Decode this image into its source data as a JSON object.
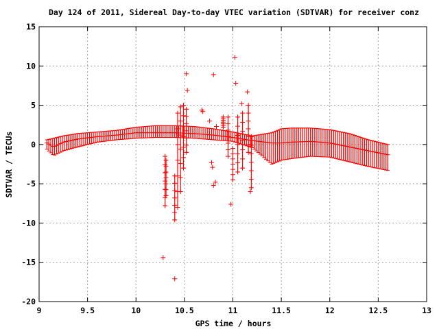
{
  "chart_data": {
    "type": "scatter",
    "title": "Day 124 of 2011, Sidereal Day-to-day VTEC variation (SDTVAR) for receiver conz",
    "xlabel": "GPS time / hours",
    "ylabel": "SDTVAR / TECUs",
    "xlim": [
      9,
      13
    ],
    "ylim": [
      -20,
      15
    ],
    "x_ticks": [
      "9",
      "9.5",
      "10",
      "10.5",
      "11",
      "11.5",
      "12",
      "12.5",
      "13"
    ],
    "y_ticks": [
      "15",
      "10",
      "5",
      "0",
      "-5",
      "-10",
      "-15",
      "-20"
    ],
    "grid": true,
    "marker": "+",
    "series_color": "#ff0000",
    "band": {
      "note": "dense band of error bars (mean with min/max) sampled every 0.02 h",
      "x": [
        9.08,
        9.15,
        9.25,
        9.4,
        9.6,
        9.8,
        10.0,
        10.2,
        10.4,
        10.6,
        10.8,
        11.0,
        11.2,
        11.4,
        11.5,
        11.6,
        11.8,
        12.0,
        12.2,
        12.4,
        12.6
      ],
      "mean": [
        0.2,
        -0.3,
        0.3,
        0.7,
        1.0,
        1.2,
        1.5,
        1.5,
        1.5,
        1.4,
        1.2,
        0.9,
        0.5,
        0.2,
        0.2,
        0.3,
        0.4,
        0.2,
        -0.3,
        -0.8,
        -1.3
      ],
      "low": [
        -0.6,
        -1.4,
        -0.8,
        -0.3,
        0.3,
        0.6,
        0.8,
        0.9,
        0.9,
        0.8,
        0.6,
        0.4,
        -0.4,
        -2.5,
        -2.0,
        -1.8,
        -1.5,
        -1.6,
        -2.2,
        -2.8,
        -3.3
      ],
      "high": [
        0.6,
        0.8,
        1.1,
        1.4,
        1.6,
        1.8,
        2.2,
        2.4,
        2.4,
        2.3,
        2.0,
        1.6,
        1.1,
        1.5,
        2.0,
        2.1,
        2.1,
        1.9,
        1.4,
        0.6,
        0.0
      ]
    },
    "spikes": [
      {
        "x": 10.3,
        "low": -7.8,
        "high": -1.5
      },
      {
        "x": 10.31,
        "low": -6.5,
        "high": -2.0
      },
      {
        "x": 10.4,
        "low": -9.6,
        "high": -4.0
      },
      {
        "x": 10.43,
        "low": -8.0,
        "high": 4.0
      },
      {
        "x": 10.46,
        "low": -6.0,
        "high": 4.8
      },
      {
        "x": 10.49,
        "low": -3.0,
        "high": 5.0
      },
      {
        "x": 10.52,
        "low": -1.0,
        "high": 4.5
      },
      {
        "x": 10.9,
        "low": 2.2,
        "high": 3.5
      },
      {
        "x": 10.95,
        "low": -1.5,
        "high": 3.5
      },
      {
        "x": 11.0,
        "low": -4.5,
        "high": -0.5
      },
      {
        "x": 11.05,
        "low": -3.5,
        "high": 3.5
      },
      {
        "x": 11.1,
        "low": -3.0,
        "high": 4.0
      },
      {
        "x": 11.16,
        "low": -1.0,
        "high": 5.0
      },
      {
        "x": 11.19,
        "low": -5.5,
        "high": 1.0
      }
    ],
    "outliers": [
      {
        "x": 10.28,
        "y": -14.4
      },
      {
        "x": 10.4,
        "y": -17.1
      },
      {
        "x": 10.52,
        "y": 9.0
      },
      {
        "x": 10.53,
        "y": 6.9
      },
      {
        "x": 10.8,
        "y": 8.9
      },
      {
        "x": 11.02,
        "y": 11.1
      },
      {
        "x": 11.03,
        "y": 7.8
      },
      {
        "x": 11.15,
        "y": 6.7
      },
      {
        "x": 11.09,
        "y": 5.2
      },
      {
        "x": 10.68,
        "y": 4.4
      },
      {
        "x": 10.69,
        "y": 4.2
      },
      {
        "x": 10.78,
        "y": -2.3
      },
      {
        "x": 10.79,
        "y": -2.9
      },
      {
        "x": 10.8,
        "y": -5.2
      },
      {
        "x": 10.82,
        "y": -4.8
      },
      {
        "x": 10.98,
        "y": -7.6
      },
      {
        "x": 11.18,
        "y": -6.0
      },
      {
        "x": 10.76,
        "y": 3.0
      },
      {
        "x": 10.83,
        "y": 2.3
      }
    ]
  }
}
